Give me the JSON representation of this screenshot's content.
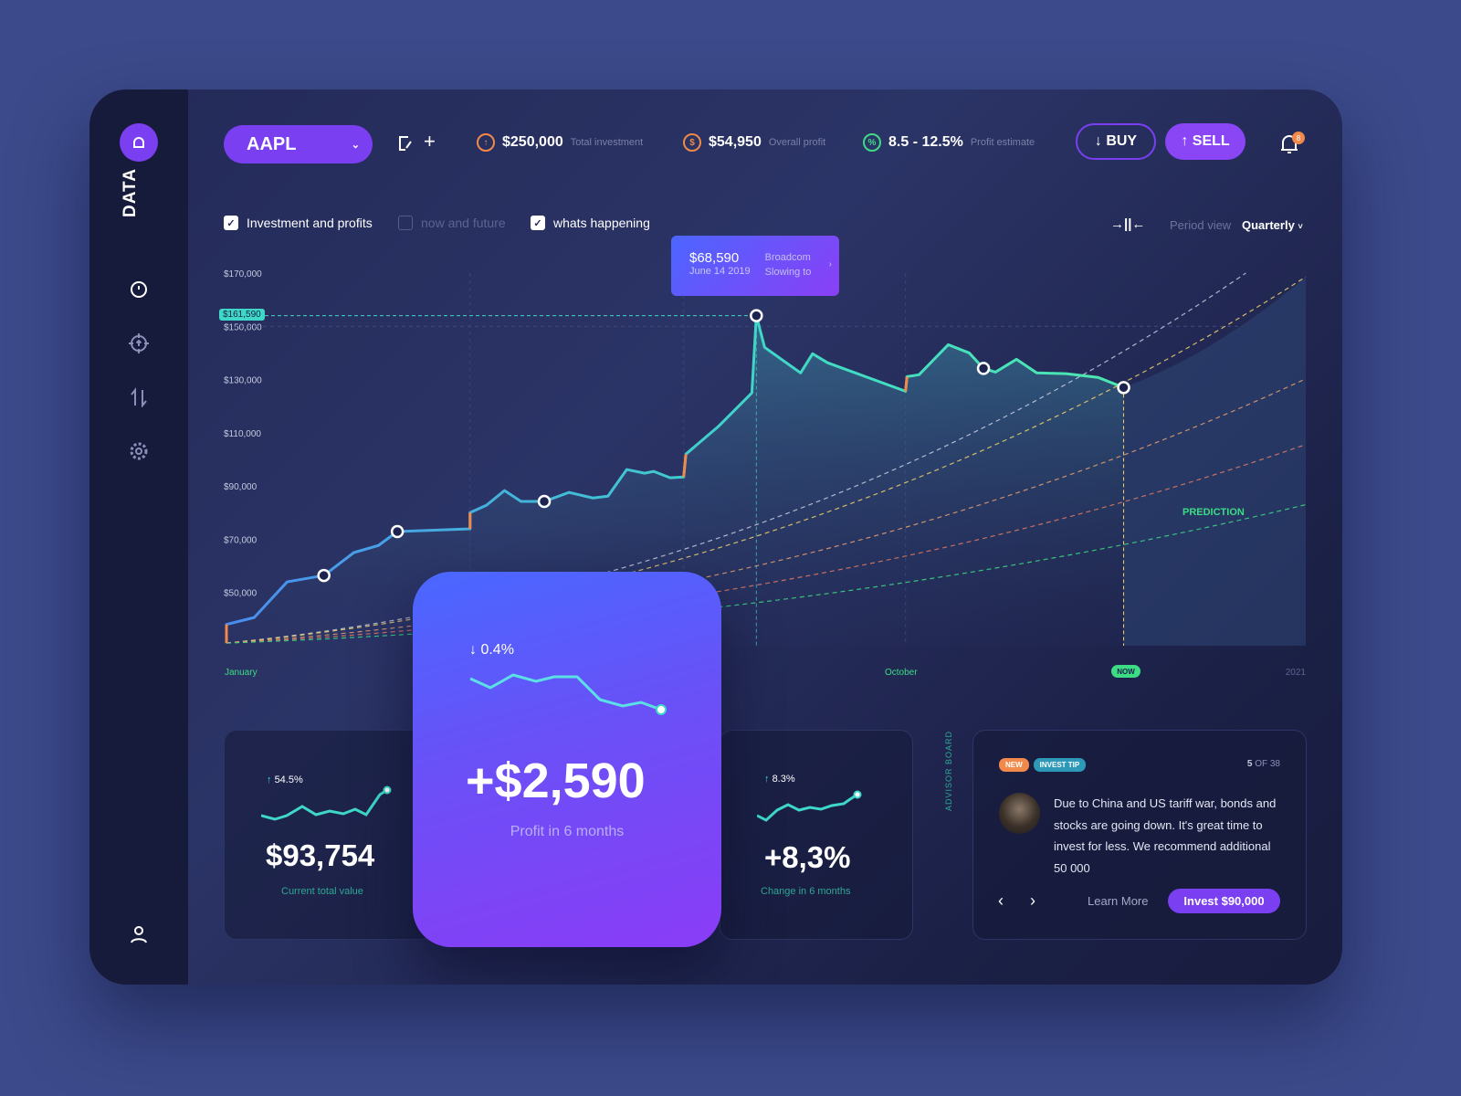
{
  "sidebar": {
    "brand": "DATA",
    "items": [
      {
        "icon": "gauge-icon"
      },
      {
        "icon": "target-icon"
      },
      {
        "icon": "transfer-arrows-icon"
      },
      {
        "icon": "gear-icon"
      }
    ],
    "profile_icon": "user-icon"
  },
  "header": {
    "ticker": "AAPL",
    "stats": [
      {
        "value": "$250,000",
        "label": "Total investment",
        "icon": "arrow-up-circle-icon",
        "color": "#f0894a"
      },
      {
        "value": "$54,950",
        "label": "Overall profit",
        "icon": "dollar-circle-icon",
        "color": "#f0894a"
      },
      {
        "value": "8.5 - 12.5%",
        "label": "Profit estimate",
        "icon": "percent-circle-icon",
        "color": "#3ddc84"
      }
    ],
    "buy_label": "↓ BUY",
    "sell_label": "↑ SELL",
    "notification_count": "8"
  },
  "filters": [
    {
      "label": "Investment and profits",
      "checked": true
    },
    {
      "label": "now and future",
      "checked": false
    },
    {
      "label": "whats happening",
      "checked": true
    }
  ],
  "period": {
    "label": "Period view",
    "value": "Quarterly"
  },
  "tooltip": {
    "value": "$68,590",
    "date": "June 14 2019",
    "title": "Broadcom",
    "subtitle": "Slowing to"
  },
  "peak_badge": "$161,590",
  "prediction_label": "PREDICTION",
  "colors": {
    "accent": "#7b3ff2",
    "line": "#3fd8c8",
    "step": "#f0894a",
    "prediction": "#3ddc84"
  },
  "chart_data": {
    "type": "line",
    "ylim": [
      30000,
      170000
    ],
    "yticks": [
      "$170,000",
      "$150,000",
      "$130,000",
      "$110,000",
      "$90,000",
      "$70,000",
      "$50,000"
    ],
    "ytick_values": [
      170000,
      150000,
      130000,
      110000,
      90000,
      70000,
      50000
    ],
    "xticks": [
      {
        "label": "January",
        "x": 0
      },
      {
        "label": "October",
        "x": 9
      },
      {
        "label": "NOW",
        "x": 12
      },
      {
        "label": "2021",
        "x": 14.4
      }
    ],
    "xlim": [
      0,
      14.4
    ],
    "series": [
      {
        "points": [
          [
            0,
            31000
          ],
          [
            0,
            38000
          ],
          [
            0.37,
            40600
          ],
          [
            0.81,
            54000
          ],
          [
            1.3,
            56400
          ],
          [
            1.7,
            65000
          ],
          [
            2.03,
            67700
          ],
          [
            2.28,
            72900
          ],
          [
            3.25,
            73900
          ],
          [
            3.25,
            80000
          ],
          [
            3.47,
            82800
          ],
          [
            3.71,
            88300
          ],
          [
            3.93,
            84200
          ],
          [
            4.24,
            84200
          ],
          [
            4.57,
            87600
          ],
          [
            4.89,
            85500
          ],
          [
            5.09,
            86200
          ],
          [
            5.34,
            96200
          ],
          [
            5.58,
            94800
          ],
          [
            5.7,
            95500
          ],
          [
            5.92,
            93100
          ],
          [
            6.1,
            93400
          ],
          [
            6.13,
            102000
          ],
          [
            6.56,
            112300
          ],
          [
            7.01,
            125000
          ],
          [
            7.07,
            154000
          ],
          [
            7.18,
            142100
          ],
          [
            7.66,
            132500
          ],
          [
            7.82,
            139700
          ],
          [
            8.02,
            136300
          ],
          [
            9.06,
            125600
          ],
          [
            9.08,
            131100
          ],
          [
            9.24,
            131800
          ],
          [
            9.63,
            143100
          ],
          [
            9.91,
            140000
          ],
          [
            10.1,
            134200
          ],
          [
            10.26,
            132800
          ],
          [
            10.54,
            137600
          ],
          [
            10.81,
            132500
          ],
          [
            11.2,
            132200
          ],
          [
            11.63,
            130800
          ],
          [
            11.97,
            127000
          ]
        ],
        "markers": [
          4,
          7,
          13,
          25,
          35,
          41
        ],
        "jumps": [
          [
            0,
            1
          ],
          [
            8,
            9
          ],
          [
            21,
            22
          ],
          [
            30,
            31
          ]
        ]
      }
    ],
    "predictions": [
      {
        "color": "#c9cce0",
        "end": [
          13.6,
          170000
        ]
      },
      {
        "color": "#f2d36b",
        "end": [
          14.4,
          168600
        ]
      },
      {
        "color": "#e9a070",
        "end": [
          14.4,
          130300
        ]
      },
      {
        "color": "#e57b60",
        "end": [
          14.4,
          105600
        ]
      },
      {
        "color": "#3ddc84",
        "end": [
          14.4,
          83000
        ]
      }
    ]
  },
  "cards": {
    "current": {
      "change": "54.5%",
      "value": "$93,754",
      "label": "Current total value"
    },
    "profit": {
      "change": "0.4%",
      "value": "+$2,590",
      "label": "Profit in 6 months"
    },
    "change": {
      "change": "8.3%",
      "value": "+8,3%",
      "label": "Change in 6 months"
    }
  },
  "advisor": {
    "side_label": "ADVISOR BOARD",
    "tags": [
      "NEW",
      "INVEST TIP"
    ],
    "page_current": "5",
    "page_rest": "OF 38",
    "text": "Due to China and US tariff war, bonds and stocks are going down. It's great time to invest for less. We recommend additional 50 000",
    "learn_more": "Learn More",
    "invest": "Invest $90,000"
  }
}
